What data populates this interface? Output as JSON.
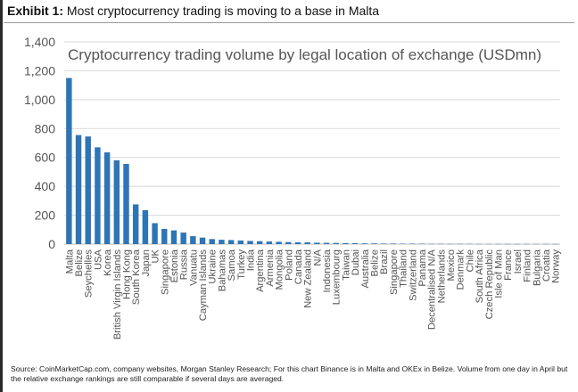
{
  "header": {
    "label": "Exhibit 1:",
    "text": "Most cryptocurrency trading is moving to a base in Malta"
  },
  "source": "Source: CoinMarketCap.com, company websites, Morgan Stanley Research; For this chart Binance is in Malta and OKEx in Belize. Volume from one day in April but the relative exchange rankings are still comparable if several days are averaged.",
  "colors": {
    "bar": "#2e75b6",
    "grid": "#d9d9d9",
    "axis_text": "#555555"
  },
  "chart_data": {
    "type": "bar",
    "title": "Cryptocurrency trading volume by legal location of exchange (USDmn)",
    "xlabel": "",
    "ylabel": "",
    "ylim": [
      0,
      1400
    ],
    "yticks": [
      0,
      200,
      400,
      600,
      800,
      1000,
      1200,
      1400
    ],
    "ytick_labels": [
      "0",
      "200",
      "400",
      "600",
      "800",
      "1,000",
      "1,200",
      "1,400"
    ],
    "grid": true,
    "categories": [
      "Malta",
      "Belize",
      "Seychelles",
      "USA",
      "Korea",
      "British Virgin Islands",
      "Hong Kong",
      "South Korea",
      "Japan",
      "UK",
      "Singapore",
      "Estonia",
      "Russia",
      "Vanuatu",
      "Cayman Islands",
      "Ukraine",
      "Bahamas",
      "Samoa",
      "Turkey",
      "India",
      "Argentina",
      "Armenia",
      "Mongolia",
      "Poland",
      "Canada",
      "New Zealand",
      "N/A",
      "Indonesia",
      "Luxembourg",
      "Taiwan",
      "Dubai",
      "Australia",
      "Belize",
      "Brazil",
      "Singapore",
      "Thailand",
      "Switzerland",
      "Panama",
      "Decentralised N/A",
      "Netherlands",
      "Mexico",
      "Denmark",
      "Chile",
      "South Africa",
      "Czech Republic",
      "Isle of Man",
      "France",
      "Israel",
      "Finland",
      "Bulgaria",
      "Croatia",
      "Norway"
    ],
    "values": [
      1150,
      755,
      745,
      670,
      635,
      580,
      555,
      275,
      235,
      145,
      105,
      95,
      80,
      55,
      45,
      35,
      30,
      28,
      25,
      22,
      20,
      18,
      16,
      14,
      13,
      12,
      10,
      9,
      8,
      7,
      6,
      5,
      5,
      4,
      4,
      3,
      3,
      3,
      2,
      2,
      2,
      2,
      2,
      1,
      1,
      1,
      1,
      1,
      1,
      1,
      1,
      1
    ]
  }
}
